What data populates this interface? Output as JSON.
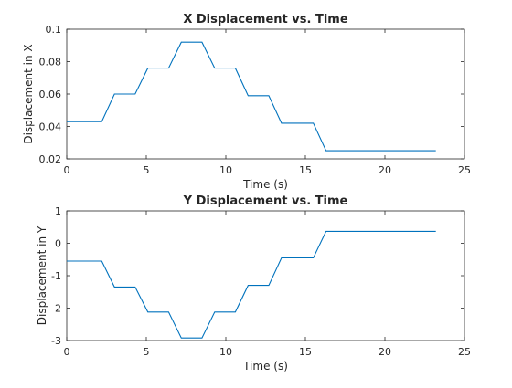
{
  "chart_data": [
    {
      "type": "line",
      "title": "X Displacement vs. Time",
      "xlabel": "Time (s)",
      "ylabel": "Displacement in X",
      "xlim": [
        0,
        25
      ],
      "ylim": [
        0.02,
        0.1
      ],
      "xticks": [
        0,
        5,
        10,
        15,
        20,
        25
      ],
      "yticks": [
        0.02,
        0.04,
        0.06,
        0.08,
        0.1
      ],
      "xtick_labels": [
        "0",
        "5",
        "10",
        "15",
        "20",
        "25"
      ],
      "ytick_labels": [
        "0.02",
        "0.04",
        "0.06",
        "0.08",
        "0.1"
      ],
      "grid": false,
      "color": "#0072BD",
      "series": [
        {
          "x": [
            0,
            2.2,
            3.0,
            4.3,
            5.1,
            6.4,
            7.2,
            8.5,
            9.3,
            10.6,
            11.4,
            12.7,
            13.5,
            15.5,
            16.3,
            23.2
          ],
          "y": [
            0.043,
            0.043,
            0.06,
            0.06,
            0.076,
            0.076,
            0.092,
            0.092,
            0.076,
            0.076,
            0.059,
            0.059,
            0.042,
            0.042,
            0.025,
            0.025
          ]
        }
      ]
    },
    {
      "type": "line",
      "title": "Y Displacement vs. Time",
      "xlabel": "Time (s)",
      "ylabel": "Displacement in Y",
      "xlim": [
        0,
        25
      ],
      "ylim": [
        -3,
        1
      ],
      "xticks": [
        0,
        5,
        10,
        15,
        20,
        25
      ],
      "yticks": [
        -3,
        -2,
        -1,
        0,
        1
      ],
      "xtick_labels": [
        "0",
        "5",
        "10",
        "15",
        "20",
        "25"
      ],
      "ytick_labels": [
        "-3",
        "-2",
        "-1",
        "0",
        "1"
      ],
      "grid": false,
      "color": "#0072BD",
      "series": [
        {
          "x": [
            0,
            2.2,
            3.0,
            4.3,
            5.1,
            6.4,
            7.2,
            8.5,
            9.3,
            10.6,
            11.4,
            12.7,
            13.5,
            15.5,
            16.3,
            23.2
          ],
          "y": [
            -0.55,
            -0.55,
            -1.35,
            -1.35,
            -2.12,
            -2.12,
            -2.92,
            -2.92,
            -2.12,
            -2.12,
            -1.3,
            -1.3,
            -0.45,
            -0.45,
            0.37,
            0.37
          ]
        }
      ]
    }
  ]
}
